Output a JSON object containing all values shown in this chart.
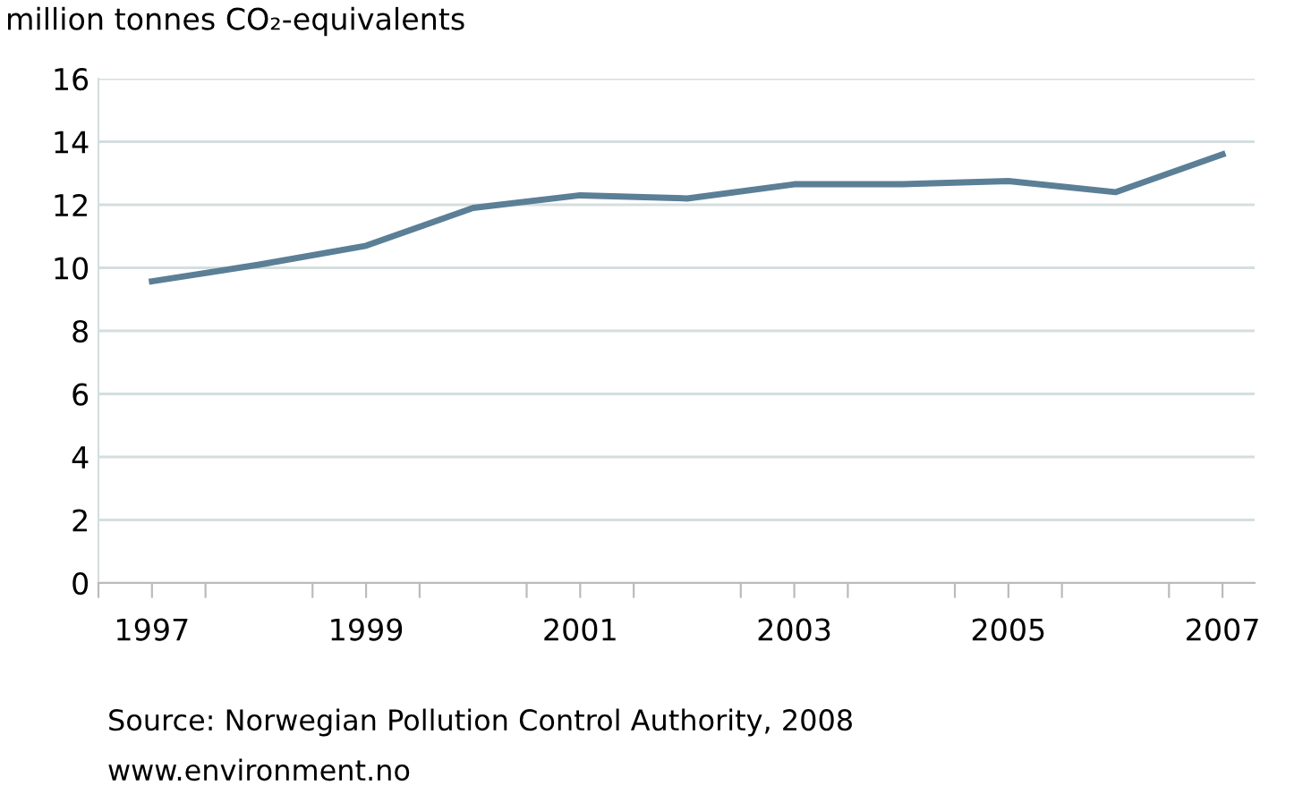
{
  "chart_data": {
    "type": "line",
    "ylabel": "million tonnes CO₂-equivalents",
    "x": [
      1997,
      1998,
      1999,
      2000,
      2001,
      2002,
      2003,
      2004,
      2005,
      2006,
      2007
    ],
    "series": [
      {
        "color": "#5b7f96",
        "values": [
          9.57,
          10.1,
          10.7,
          11.9,
          12.3,
          12.2,
          12.65,
          12.65,
          12.75,
          12.4,
          13.6
        ]
      }
    ],
    "xlim": [
      1996.5,
      2007.3
    ],
    "xticks": [
      {
        "value": 1996.5,
        "label": null
      },
      {
        "value": 1997,
        "label": "1997"
      },
      {
        "value": 1997.5,
        "label": null
      },
      {
        "value": 1998.5,
        "label": null
      },
      {
        "value": 1999,
        "label": "1999"
      },
      {
        "value": 1999.5,
        "label": null
      },
      {
        "value": 2000.5,
        "label": null
      },
      {
        "value": 2001,
        "label": "2001"
      },
      {
        "value": 2001.5,
        "label": null
      },
      {
        "value": 2002.5,
        "label": null
      },
      {
        "value": 2003,
        "label": "2003"
      },
      {
        "value": 2003.5,
        "label": null
      },
      {
        "value": 2004.5,
        "label": null
      },
      {
        "value": 2005,
        "label": "2005"
      },
      {
        "value": 2005.5,
        "label": null
      },
      {
        "value": 2006.5,
        "label": null
      },
      {
        "value": 2007,
        "label": "2007"
      }
    ],
    "ylim": [
      0,
      16
    ],
    "yticks": [
      0,
      2,
      4,
      6,
      8,
      10,
      12,
      14,
      16
    ],
    "grid": "y",
    "marker": "none",
    "line_style": "solid",
    "annotations": [
      "Source: Norwegian Pollution Control Authority, 2008",
      "www.environment.no"
    ]
  }
}
